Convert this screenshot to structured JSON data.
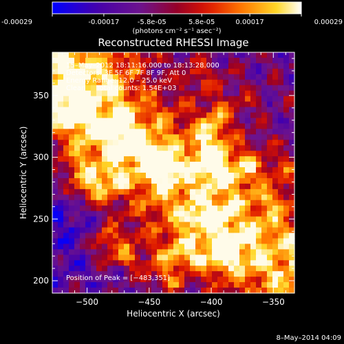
{
  "colorbar": {
    "tick_labels": [
      "-0.00029",
      "-0.00017",
      "-5.8e-05",
      "5.8e-05",
      "0.00017",
      "0.00029"
    ],
    "tick_values": [
      -0.00029,
      -0.00017,
      -5.8e-05,
      5.8e-05,
      0.00017,
      0.00029
    ],
    "range": [
      -0.00029,
      0.00029
    ],
    "unit_label": "(photons cm⁻² s⁻¹ asec⁻²)"
  },
  "chart_data": {
    "type": "heatmap",
    "title": "Reconstructed RHESSI Image",
    "xlabel": "Heliocentric X (arcsec)",
    "ylabel": "Heliocentric Y (arcsec)",
    "xlim": [
      -528,
      -333
    ],
    "ylim": [
      190,
      385
    ],
    "x_ticks": [
      -500,
      -450,
      -400,
      -350
    ],
    "y_ticks": [
      200,
      250,
      300,
      350
    ],
    "x_tick_labels": [
      "−500",
      "−450",
      "−400",
      "−350"
    ],
    "y_tick_labels": [
      "200",
      "250",
      "300",
      "350"
    ],
    "colormap": "blue-purple-red-orange-yellow-white",
    "peak_position": [
      -483,
      351
    ],
    "annotations": [
      "15–May–2012 18:11:16.000 to 18:13:28.000",
      "Detectors: 3F 5F 6F 7F 8F 9F, Att 0",
      "Energy Range: 12.0 – 25.0 keV",
      "Clean     Total counts: 1.54E+03",
      "Position of Peak = [−483,351]"
    ]
  },
  "footer": {
    "date": "8–May–2014 04:09"
  },
  "colors": {
    "background": "#000000",
    "text": "#ffffff"
  }
}
